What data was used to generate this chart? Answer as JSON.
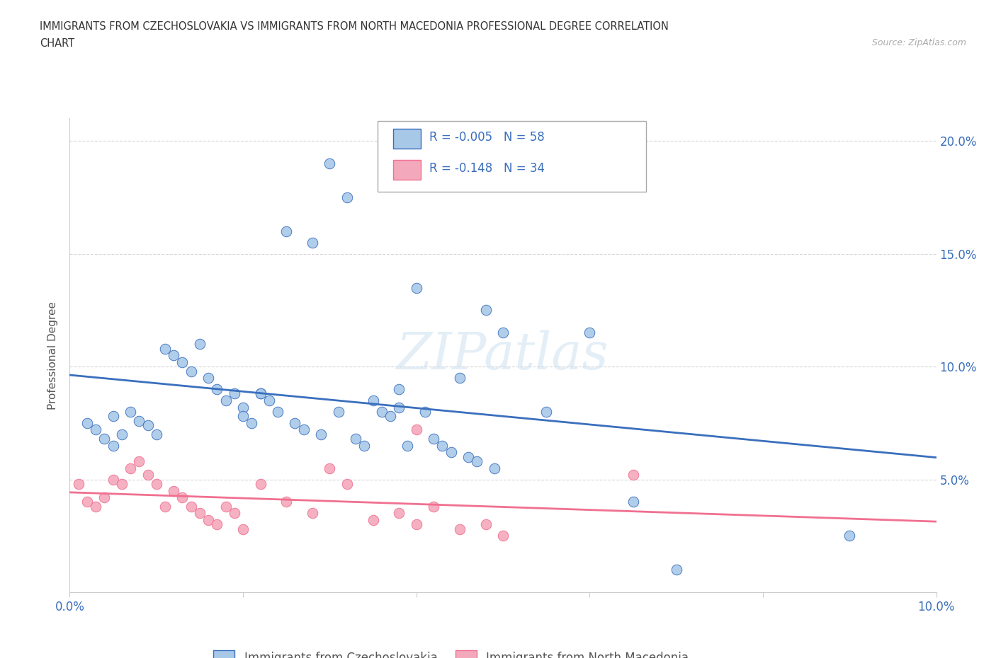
{
  "title_line1": "IMMIGRANTS FROM CZECHOSLOVAKIA VS IMMIGRANTS FROM NORTH MACEDONIA PROFESSIONAL DEGREE CORRELATION",
  "title_line2": "CHART",
  "source": "Source: ZipAtlas.com",
  "ylabel": "Professional Degree",
  "watermark": "ZIPatlas",
  "legend_label1": "Immigrants from Czechoslovakia",
  "legend_label2": "Immigrants from North Macedonia",
  "R1": -0.005,
  "N1": 58,
  "R2": -0.148,
  "N2": 34,
  "color1": "#a8c8e8",
  "color2": "#f4a8bc",
  "line_color1": "#3a6fbd",
  "line_color2": "#f07090",
  "xlim": [
    0.0,
    0.1
  ],
  "ylim": [
    0.0,
    0.21
  ],
  "xticks": [
    0.0,
    0.02,
    0.04,
    0.06,
    0.08,
    0.1
  ],
  "yticks": [
    0.0,
    0.05,
    0.1,
    0.15,
    0.2
  ],
  "xticklabels": [
    "0.0%",
    "",
    "",
    "",
    "",
    "10.0%"
  ],
  "yticklabels": [
    "",
    "5.0%",
    "10.0%",
    "15.0%",
    "20.0%"
  ],
  "blue_x": [
    0.002,
    0.003,
    0.004,
    0.005,
    0.005,
    0.006,
    0.007,
    0.008,
    0.009,
    0.01,
    0.011,
    0.012,
    0.013,
    0.014,
    0.015,
    0.016,
    0.017,
    0.018,
    0.019,
    0.02,
    0.02,
    0.021,
    0.022,
    0.023,
    0.024,
    0.025,
    0.026,
    0.027,
    0.028,
    0.029,
    0.03,
    0.031,
    0.032,
    0.033,
    0.034,
    0.035,
    0.036,
    0.037,
    0.038,
    0.039,
    0.04,
    0.041,
    0.042,
    0.043,
    0.044,
    0.045,
    0.046,
    0.047,
    0.048,
    0.049,
    0.05,
    0.055,
    0.06,
    0.065,
    0.07,
    0.09,
    0.022,
    0.038
  ],
  "blue_y": [
    0.075,
    0.072,
    0.068,
    0.078,
    0.065,
    0.07,
    0.08,
    0.076,
    0.074,
    0.07,
    0.108,
    0.105,
    0.102,
    0.098,
    0.11,
    0.095,
    0.09,
    0.085,
    0.088,
    0.082,
    0.078,
    0.075,
    0.088,
    0.085,
    0.08,
    0.16,
    0.075,
    0.072,
    0.155,
    0.07,
    0.19,
    0.08,
    0.175,
    0.068,
    0.065,
    0.085,
    0.08,
    0.078,
    0.09,
    0.065,
    0.135,
    0.08,
    0.068,
    0.065,
    0.062,
    0.095,
    0.06,
    0.058,
    0.125,
    0.055,
    0.115,
    0.08,
    0.115,
    0.04,
    0.01,
    0.025,
    0.088,
    0.082
  ],
  "pink_x": [
    0.001,
    0.002,
    0.003,
    0.004,
    0.005,
    0.006,
    0.007,
    0.008,
    0.009,
    0.01,
    0.011,
    0.012,
    0.013,
    0.014,
    0.015,
    0.016,
    0.017,
    0.018,
    0.019,
    0.02,
    0.022,
    0.025,
    0.028,
    0.03,
    0.032,
    0.035,
    0.038,
    0.04,
    0.042,
    0.045,
    0.048,
    0.05,
    0.065,
    0.04
  ],
  "pink_y": [
    0.048,
    0.04,
    0.038,
    0.042,
    0.05,
    0.048,
    0.055,
    0.058,
    0.052,
    0.048,
    0.038,
    0.045,
    0.042,
    0.038,
    0.035,
    0.032,
    0.03,
    0.038,
    0.035,
    0.028,
    0.048,
    0.04,
    0.035,
    0.055,
    0.048,
    0.032,
    0.035,
    0.03,
    0.038,
    0.028,
    0.03,
    0.025,
    0.052,
    0.072
  ]
}
